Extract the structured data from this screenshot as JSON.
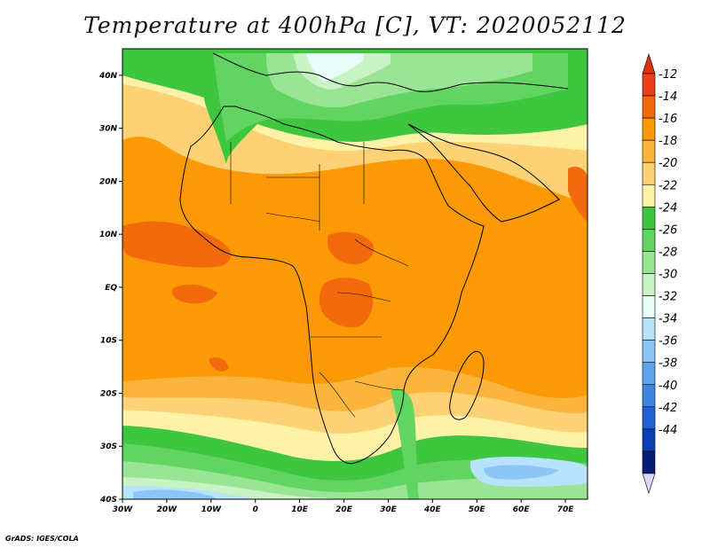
{
  "title": "Temperature at 400hPa [C], VT: 2020052112",
  "credit": "GrADS: IGES/COLA",
  "map": {
    "lon_range": [
      -30,
      75
    ],
    "lat_range": [
      -40,
      45
    ],
    "x_ticks": [
      {
        "lon": -30,
        "label": "30W"
      },
      {
        "lon": -20,
        "label": "20W"
      },
      {
        "lon": -10,
        "label": "10W"
      },
      {
        "lon": 0,
        "label": "0"
      },
      {
        "lon": 10,
        "label": "10E"
      },
      {
        "lon": 20,
        "label": "20E"
      },
      {
        "lon": 30,
        "label": "30E"
      },
      {
        "lon": 40,
        "label": "40E"
      },
      {
        "lon": 50,
        "label": "50E"
      },
      {
        "lon": 60,
        "label": "60E"
      },
      {
        "lon": 70,
        "label": "70E"
      }
    ],
    "y_ticks": [
      {
        "lat": 40,
        "label": "40N"
      },
      {
        "lat": 30,
        "label": "30N"
      },
      {
        "lat": 20,
        "label": "20N"
      },
      {
        "lat": 10,
        "label": "10N"
      },
      {
        "lat": 0,
        "label": "EQ"
      },
      {
        "lat": -10,
        "label": "10S"
      },
      {
        "lat": -20,
        "label": "20S"
      },
      {
        "lat": -30,
        "label": "30S"
      },
      {
        "lat": -40,
        "label": "40S"
      }
    ]
  },
  "colorbar": {
    "labels": [
      "-12",
      "-14",
      "-16",
      "-18",
      "-20",
      "-22",
      "-24",
      "-26",
      "-28",
      "-30",
      "-32",
      "-34",
      "-36",
      "-38",
      "-40",
      "-42",
      "-44"
    ],
    "colors": [
      "#e8401a",
      "#f26a0c",
      "#fb9a06",
      "#fbb43c",
      "#fdd275",
      "#fdf2a8",
      "#3fc63f",
      "#62d462",
      "#9ae595",
      "#c8f3c4",
      "#e8fcf8",
      "#b7e3fc",
      "#8dc5f6",
      "#5fa4eb",
      "#3d86e1",
      "#2262d2",
      "#0d3fb4",
      "#081d73"
    ],
    "under_color": "#dcd6fb",
    "over_color": "#e03010"
  }
}
